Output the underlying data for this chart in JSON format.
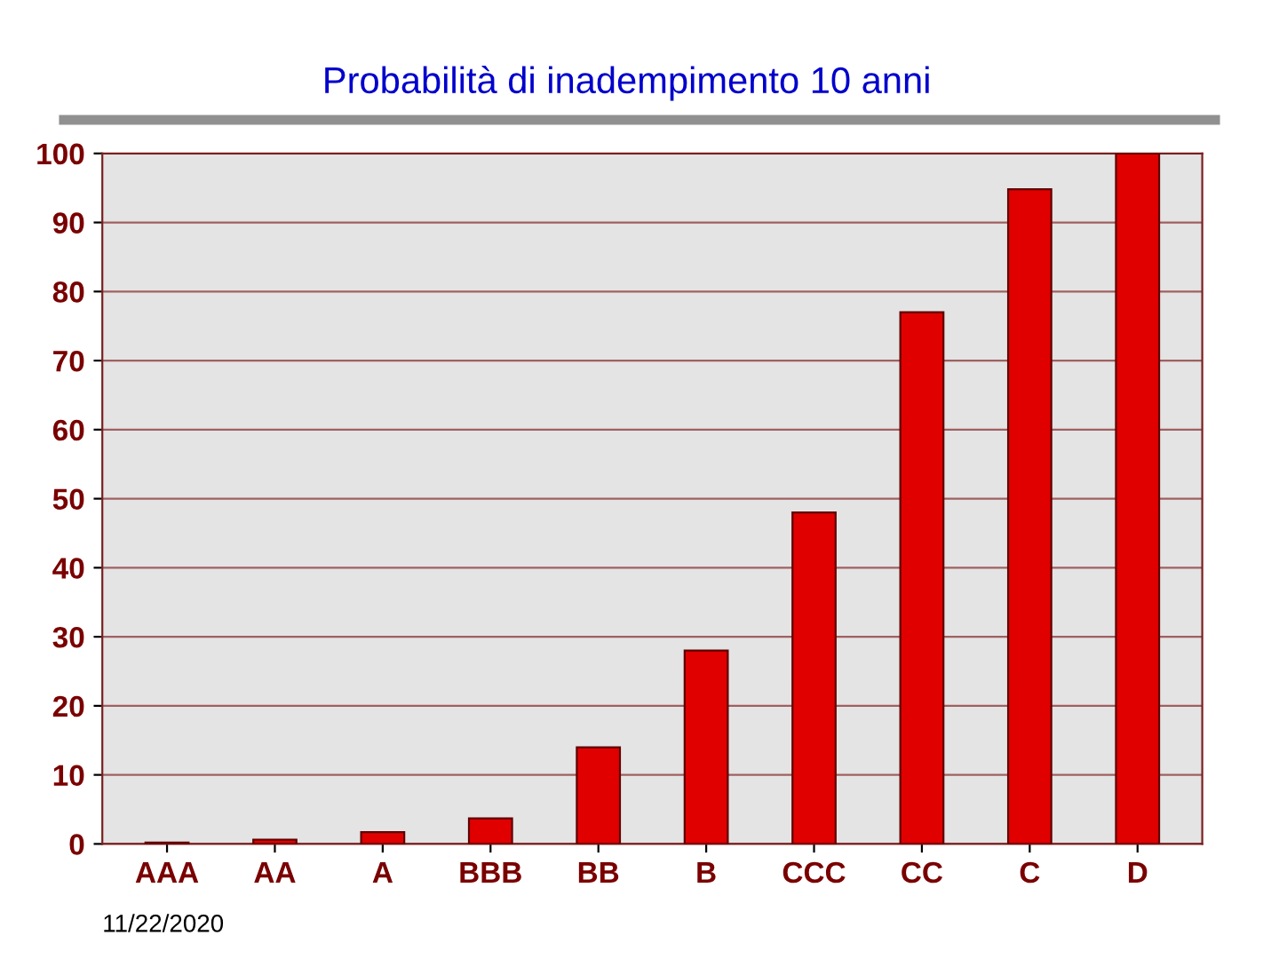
{
  "chart_data": {
    "type": "bar",
    "title": "Probabilità di inadempimento 10 anni",
    "categories": [
      "AAA",
      "AA",
      "A",
      "BBB",
      "BB",
      "B",
      "CCC",
      "CC",
      "C",
      "D"
    ],
    "values": [
      0.2,
      0.6,
      1.7,
      3.7,
      14,
      28,
      48,
      77,
      94.8,
      100
    ],
    "color": "#e00000",
    "ylim": [
      0,
      100
    ],
    "yticks": [
      0,
      10,
      20,
      30,
      40,
      50,
      60,
      70,
      80,
      90,
      100
    ],
    "grid": "y",
    "annotations": [
      "11/22/2020"
    ]
  }
}
